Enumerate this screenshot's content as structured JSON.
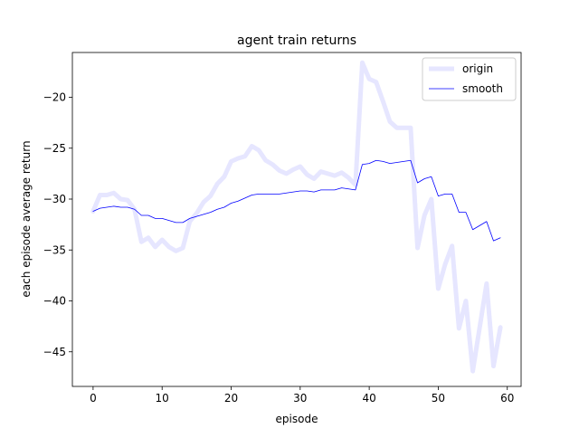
{
  "chart_data": {
    "type": "line",
    "title": "agent train returns",
    "xlabel": "episode",
    "ylabel": "each episode average return",
    "xlim": [
      -3,
      62
    ],
    "ylim": [
      -48.4,
      -15.6
    ],
    "xticks": [
      0,
      10,
      20,
      30,
      40,
      50,
      60
    ],
    "yticks": [
      -45,
      -40,
      -35,
      -30,
      -25,
      -20
    ],
    "ytick_labels": [
      "−45",
      "−40",
      "−35",
      "−30",
      "−25",
      "−20"
    ],
    "legend_position": "top-right",
    "grid": false,
    "series": [
      {
        "name": "origin",
        "color": "#e6e6ff",
        "x": [
          0,
          1,
          2,
          3,
          4,
          5,
          6,
          7,
          8,
          9,
          10,
          11,
          12,
          13,
          14,
          15,
          16,
          17,
          18,
          19,
          20,
          21,
          22,
          23,
          24,
          25,
          26,
          27,
          28,
          29,
          30,
          31,
          32,
          33,
          34,
          35,
          36,
          37,
          38,
          39,
          40,
          41,
          42,
          43,
          44,
          45,
          46,
          47,
          48,
          49,
          50,
          51,
          52,
          53,
          54,
          55,
          56,
          57,
          58,
          59
        ],
        "values": [
          -31.2,
          -29.6,
          -29.6,
          -29.4,
          -30.0,
          -30.1,
          -31.0,
          -34.2,
          -33.8,
          -34.7,
          -34.0,
          -34.7,
          -35.1,
          -34.8,
          -32.2,
          -31.4,
          -30.3,
          -29.7,
          -28.5,
          -27.8,
          -26.3,
          -26.0,
          -25.8,
          -24.8,
          -25.2,
          -26.2,
          -26.6,
          -27.2,
          -27.5,
          -27.1,
          -26.8,
          -27.6,
          -28.0,
          -27.3,
          -27.5,
          -27.7,
          -27.4,
          -27.9,
          -28.6,
          -16.6,
          -18.2,
          -18.5,
          -20.4,
          -22.4,
          -23.0,
          -23.0,
          -23.0,
          -34.8,
          -31.6,
          -30.0,
          -38.8,
          -36.4,
          -34.6,
          -42.7,
          -40.0,
          -46.9,
          -42.6,
          -38.3,
          -46.4,
          -42.6
        ]
      },
      {
        "name": "smooth",
        "color": "#0000ff",
        "x": [
          0,
          1,
          2,
          3,
          4,
          5,
          6,
          7,
          8,
          9,
          10,
          11,
          12,
          13,
          14,
          15,
          16,
          17,
          18,
          19,
          20,
          21,
          22,
          23,
          24,
          25,
          26,
          27,
          28,
          29,
          30,
          31,
          32,
          33,
          34,
          35,
          36,
          37,
          38,
          39,
          40,
          41,
          42,
          43,
          44,
          45,
          46,
          47,
          48,
          49,
          50,
          51,
          52,
          53,
          54,
          55,
          56,
          57,
          58,
          59
        ],
        "values": [
          -31.2,
          -30.9,
          -30.8,
          -30.7,
          -30.8,
          -30.8,
          -31.0,
          -31.6,
          -31.6,
          -31.9,
          -31.9,
          -32.1,
          -32.3,
          -32.3,
          -31.9,
          -31.7,
          -31.5,
          -31.3,
          -31.0,
          -30.8,
          -30.4,
          -30.2,
          -29.9,
          -29.6,
          -29.5,
          -29.5,
          -29.5,
          -29.5,
          -29.4,
          -29.3,
          -29.2,
          -29.2,
          -29.3,
          -29.1,
          -29.1,
          -29.1,
          -28.9,
          -29.0,
          -29.1,
          -26.6,
          -26.5,
          -26.2,
          -26.3,
          -26.5,
          -26.4,
          -26.3,
          -26.2,
          -28.4,
          -28.0,
          -27.8,
          -29.7,
          -29.5,
          -29.5,
          -31.3,
          -31.3,
          -33.0,
          -32.6,
          -32.2,
          -34.1,
          -33.8
        ]
      }
    ]
  }
}
